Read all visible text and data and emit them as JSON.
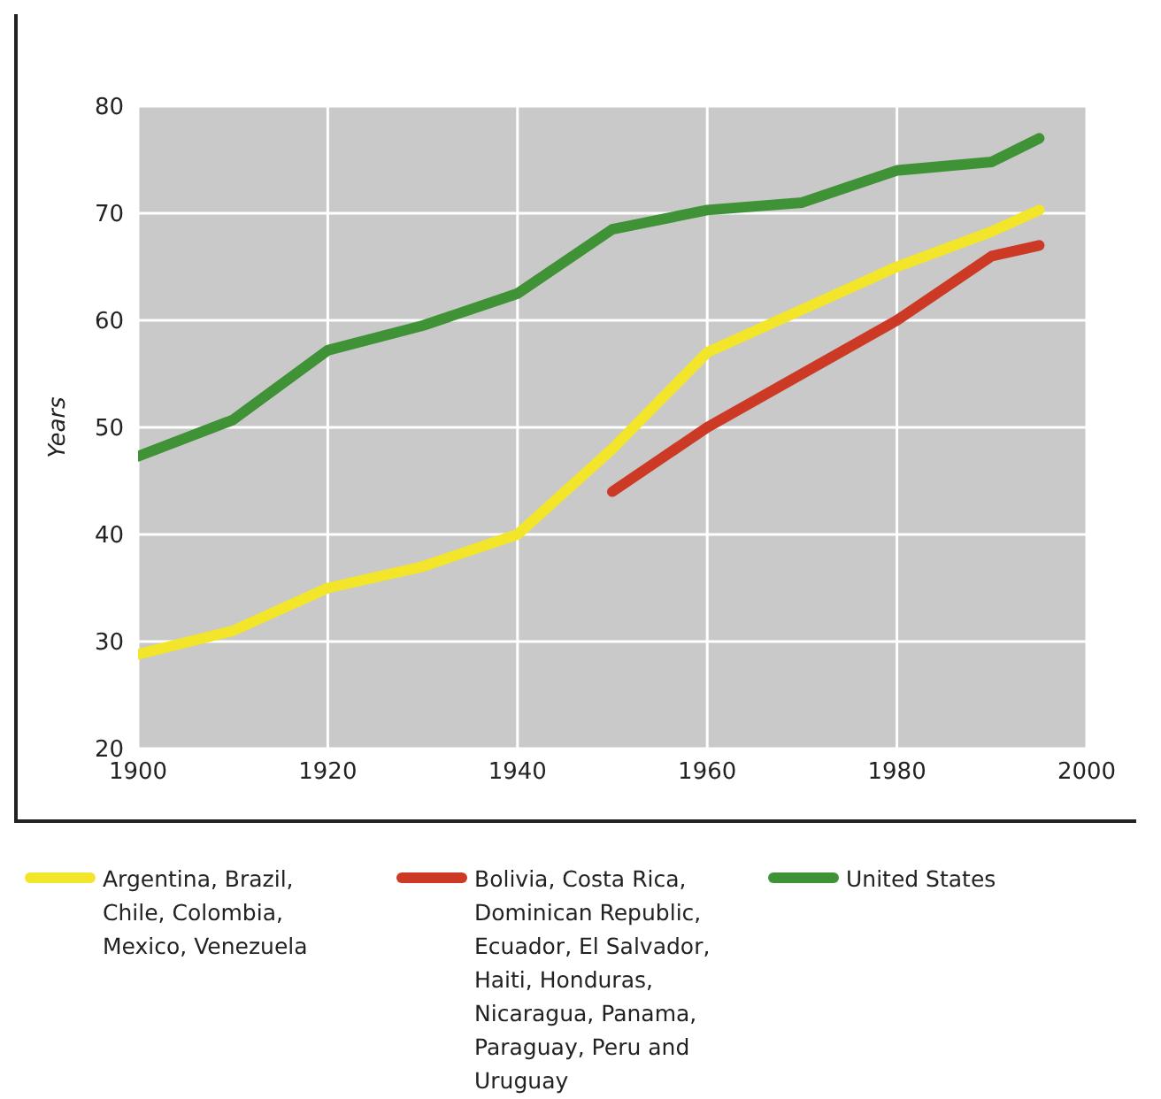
{
  "chart_data": {
    "type": "line",
    "ylabel": "Years",
    "xlim": [
      1900,
      2000
    ],
    "xticks": [
      1900,
      1920,
      1940,
      1960,
      1980,
      2000
    ],
    "ylim": [
      20,
      80
    ],
    "yticks": [
      20,
      30,
      40,
      50,
      60,
      70,
      80
    ],
    "grid": true,
    "legend": "bottom",
    "line_style": "solid",
    "marker": "none",
    "series": [
      {
        "name": "Argentina, Brazil, Chile, Colombia, Mexico, Venezuela",
        "color": "#f2e52a",
        "x": [
          1900,
          1910,
          1920,
          1930,
          1940,
          1950,
          1960,
          1970,
          1980,
          1990,
          1995
        ],
        "values": [
          28.8,
          31,
          35,
          37,
          40,
          48,
          57,
          61,
          65,
          68.3,
          70.3
        ]
      },
      {
        "name": "Bolivia, Costa Rica, Dominican Republic, Ecuador, El Salvador, Haiti, Honduras, Nicaragua, Panama, Paraguay, Peru and Uruguay",
        "color": "#cc3a26",
        "x": [
          1950,
          1960,
          1970,
          1980,
          1990,
          1995
        ],
        "values": [
          44,
          50,
          55,
          60,
          66,
          67
        ]
      },
      {
        "name": "United States",
        "color": "#3f9235",
        "x": [
          1900,
          1910,
          1920,
          1930,
          1940,
          1950,
          1960,
          1970,
          1980,
          1990,
          1995
        ],
        "values": [
          47.3,
          50.7,
          57.2,
          59.5,
          62.5,
          68.5,
          70.3,
          71,
          74,
          74.8,
          77
        ]
      }
    ]
  }
}
